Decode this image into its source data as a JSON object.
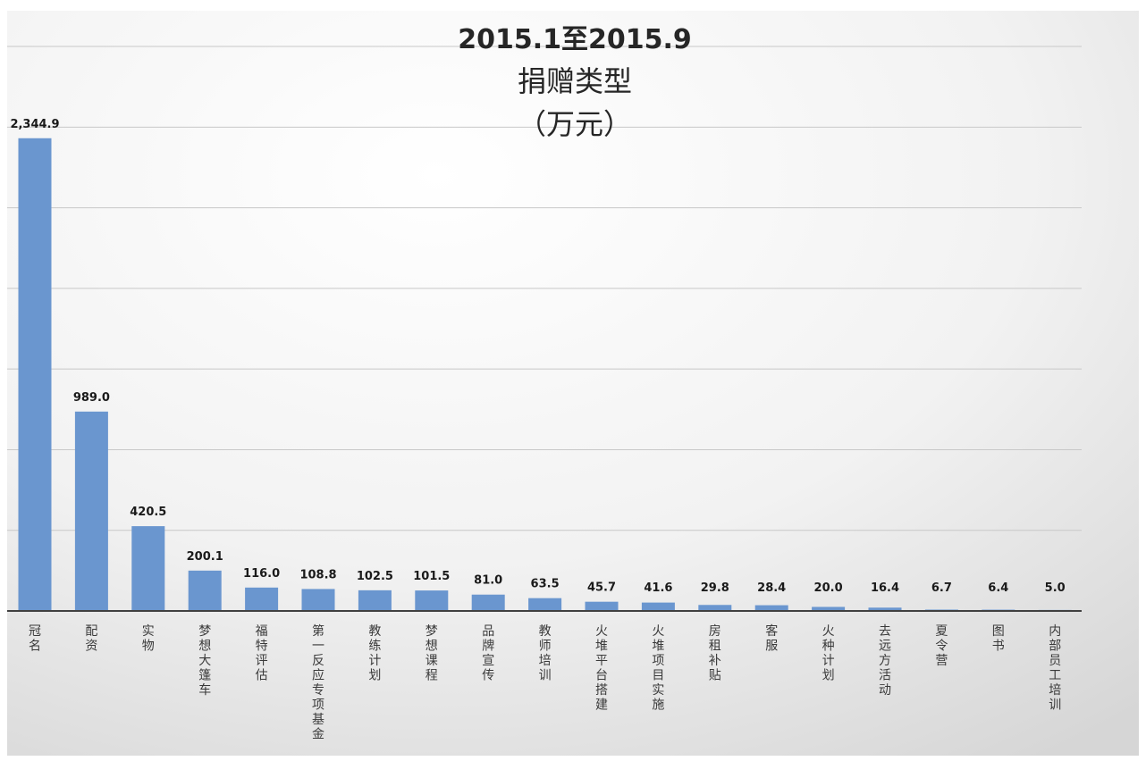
{
  "chart_data": {
    "type": "bar",
    "title_lines": [
      "2015.1至2015.9",
      "捐赠类型",
      "（万元）"
    ],
    "categories": [
      "冠名",
      "配资",
      "实物",
      "梦想大篷车",
      "福特评估",
      "第一反应专项基金",
      "教练计划",
      "梦想课程",
      "品牌宣传",
      "教师培训",
      "火堆平台搭建",
      "火堆项目实施",
      "房租补贴",
      "客服",
      "火种计划",
      "去远方活动",
      "夏令营",
      "图书",
      "内部员工培训"
    ],
    "values": [
      2344.9,
      989.0,
      420.5,
      200.1,
      116.0,
      108.8,
      102.5,
      101.5,
      81.0,
      63.5,
      45.7,
      41.6,
      29.8,
      28.4,
      20.0,
      16.4,
      6.7,
      6.4,
      5.0
    ],
    "data_labels": [
      "2,344.9",
      "989.0",
      "420.5",
      "200.1",
      "116.0",
      "108.8",
      "102.5",
      "101.5",
      "81.0",
      "63.5",
      "45.7",
      "41.6",
      "29.8",
      "28.4",
      "20.0",
      "16.4",
      "6.7",
      "6.4",
      "5.0"
    ],
    "ylim": [
      0,
      3000
    ],
    "grid": true,
    "legend": "none",
    "bar_color": "#6a96cf",
    "gridline_color": "#c8c8c8",
    "baseline_color": "#404040",
    "background_gradient": [
      "#ffffff",
      "#d9d9d9"
    ]
  }
}
